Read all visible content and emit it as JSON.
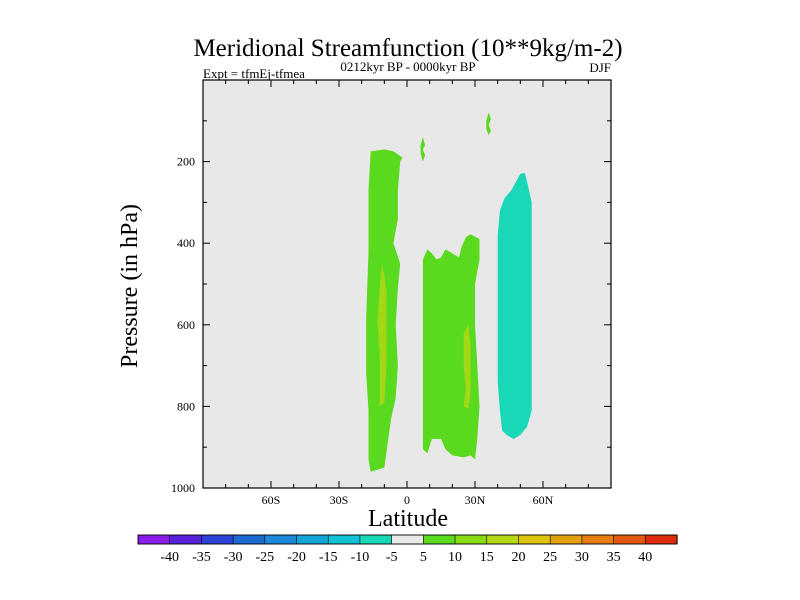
{
  "chart_data": {
    "type": "heatmap",
    "title": "Meridional Streamfunction (10**9kg/m-2)",
    "subtitle_left": "Expt = tfmEj-tfmea",
    "subtitle_center": "0212kyr BP - 0000kyr BP",
    "subtitle_right": "DJF",
    "xlabel": "Latitude",
    "ylabel": "Pressure (in hPa)",
    "xlim": [
      -90,
      90
    ],
    "ylim": [
      1000,
      0
    ],
    "x_ticks": [
      {
        "value": -60,
        "label": "60S"
      },
      {
        "value": -30,
        "label": "30S"
      },
      {
        "value": 0,
        "label": "0"
      },
      {
        "value": 30,
        "label": "30N"
      },
      {
        "value": 60,
        "label": "60N"
      }
    ],
    "y_ticks": [
      {
        "value": 200,
        "label": "200"
      },
      {
        "value": 400,
        "label": "400"
      },
      {
        "value": 600,
        "label": "600"
      },
      {
        "value": 800,
        "label": "800"
      },
      {
        "value": 1000,
        "label": "1000"
      }
    ],
    "background_color": "#e8e8e8",
    "colorbar": {
      "labels": [
        "-40",
        "-35",
        "-30",
        "-25",
        "-20",
        "-15",
        "-10",
        "-5",
        "5",
        "10",
        "15",
        "20",
        "25",
        "30",
        "35",
        "40"
      ],
      "colors": [
        "#8a1ee6",
        "#5a22d8",
        "#2e42d6",
        "#1a6ad0",
        "#1e88d8",
        "#12a6d8",
        "#10c0d4",
        "#18d8b8",
        "#e8e8e8",
        "#5ada1e",
        "#88da12",
        "#b2d816",
        "#dcc410",
        "#e4a10e",
        "#e47c10",
        "#e25810",
        "#dc2a0c"
      ]
    },
    "regions": [
      {
        "name": "green-contour-sh",
        "level": "5 to 10",
        "color": "#5ada1e",
        "points": [
          [
            -16,
            960
          ],
          [
            -10,
            950
          ],
          [
            -7,
            830
          ],
          [
            -5,
            780
          ],
          [
            -4,
            700
          ],
          [
            -5,
            600
          ],
          [
            -4,
            510
          ],
          [
            -3,
            450
          ],
          [
            -6,
            400
          ],
          [
            -4,
            340
          ],
          [
            -4,
            270
          ],
          [
            -3,
            200
          ],
          [
            -2,
            190
          ],
          [
            -6,
            175
          ],
          [
            -10,
            170
          ],
          [
            -16,
            175
          ],
          [
            -17,
            270
          ],
          [
            -17,
            420
          ],
          [
            -18,
            580
          ],
          [
            -18,
            720
          ],
          [
            -17,
            810
          ],
          [
            -17,
            930
          ]
        ]
      },
      {
        "name": "green-contour-eq",
        "level": "5 to 10",
        "color": "#5ada1e",
        "points": [
          [
            7,
            905
          ],
          [
            9,
            915
          ],
          [
            11,
            880
          ],
          [
            15,
            880
          ],
          [
            17,
            905
          ],
          [
            20,
            920
          ],
          [
            25,
            925
          ],
          [
            28,
            920
          ],
          [
            30,
            930
          ],
          [
            31,
            880
          ],
          [
            32,
            800
          ],
          [
            31,
            700
          ],
          [
            30,
            600
          ],
          [
            30,
            500
          ],
          [
            32,
            440
          ],
          [
            32,
            390
          ],
          [
            28,
            378
          ],
          [
            26,
            385
          ],
          [
            24,
            410
          ],
          [
            23,
            435
          ],
          [
            20,
            425
          ],
          [
            17,
            415
          ],
          [
            15,
            435
          ],
          [
            13,
            440
          ],
          [
            11,
            425
          ],
          [
            9,
            415
          ],
          [
            7,
            440
          ],
          [
            7,
            600
          ],
          [
            7,
            800
          ]
        ]
      },
      {
        "name": "green-contour-eq-small",
        "level": "5 to 10",
        "color": "#5ada1e",
        "points": [
          [
            7,
            140
          ],
          [
            8,
            160
          ],
          [
            7,
            170
          ],
          [
            8,
            185
          ],
          [
            7,
            200
          ],
          [
            6,
            180
          ],
          [
            6,
            160
          ]
        ]
      },
      {
        "name": "green-contour-nh-small",
        "level": "5 to 10",
        "color": "#5ada1e",
        "points": [
          [
            36,
            80
          ],
          [
            37,
            95
          ],
          [
            36,
            110
          ],
          [
            37,
            125
          ],
          [
            36,
            135
          ],
          [
            35,
            120
          ],
          [
            35,
            100
          ]
        ]
      },
      {
        "name": "cyan-contour-nh",
        "level": "-10 to -5",
        "color": "#18d8b8",
        "points": [
          [
            42,
            860
          ],
          [
            44,
            870
          ],
          [
            47,
            880
          ],
          [
            50,
            870
          ],
          [
            53,
            850
          ],
          [
            55,
            810
          ],
          [
            55,
            700
          ],
          [
            55,
            550
          ],
          [
            55,
            450
          ],
          [
            55,
            380
          ],
          [
            55,
            300
          ],
          [
            53,
            250
          ],
          [
            52,
            228
          ],
          [
            50,
            230
          ],
          [
            48,
            250
          ],
          [
            46,
            270
          ],
          [
            43,
            290
          ],
          [
            41,
            320
          ],
          [
            40,
            380
          ],
          [
            40,
            500
          ],
          [
            40,
            640
          ],
          [
            40,
            740
          ],
          [
            41,
            810
          ]
        ]
      },
      {
        "name": "yellowgreen-contour-sh",
        "level": "10 to 15",
        "color": "#a2d816",
        "points": [
          [
            -12,
            800
          ],
          [
            -10,
            790
          ],
          [
            -9,
            700
          ],
          [
            -9,
            600
          ],
          [
            -9,
            520
          ],
          [
            -10,
            480
          ],
          [
            -11,
            450
          ],
          [
            -12,
            510
          ],
          [
            -13,
            590
          ],
          [
            -12,
            680
          ],
          [
            -12,
            760
          ]
        ]
      },
      {
        "name": "yellowgreen-contour-eq",
        "level": "10 to 15",
        "color": "#a2d816",
        "points": [
          [
            25,
            800
          ],
          [
            27,
            805
          ],
          [
            28,
            770
          ],
          [
            28,
            700
          ],
          [
            28,
            650
          ],
          [
            27,
            600
          ],
          [
            25,
            620
          ],
          [
            25,
            700
          ],
          [
            26,
            760
          ]
        ]
      }
    ]
  }
}
